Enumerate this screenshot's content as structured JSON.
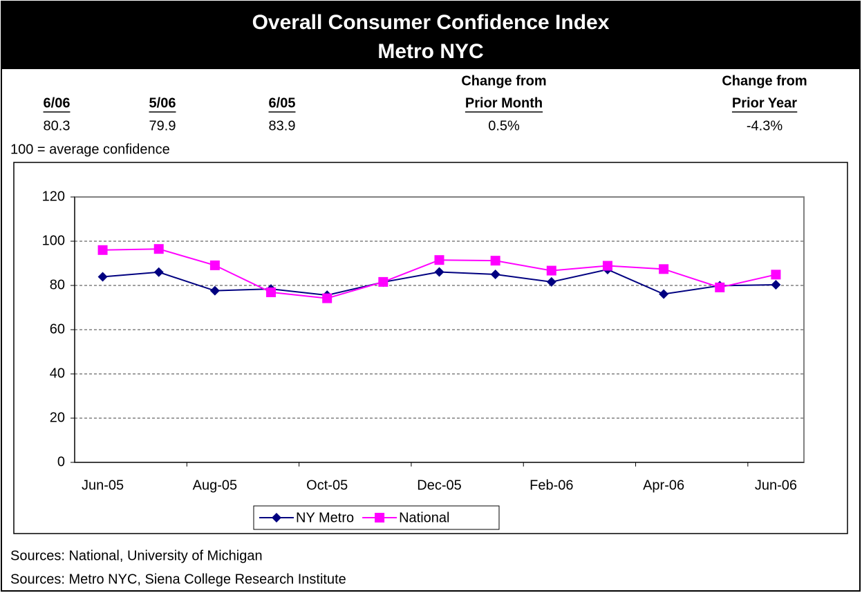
{
  "header": {
    "title": "Overall Consumer Confidence Index",
    "subtitle": "Metro NYC"
  },
  "summary": {
    "columns": [
      {
        "header": [
          "6/06"
        ],
        "value": "80.3"
      },
      {
        "header": [
          "5/06"
        ],
        "value": "79.9"
      },
      {
        "header": [
          "6/05"
        ],
        "value": "83.9"
      },
      {
        "header": [
          "Change from",
          "Prior Month"
        ],
        "value": "0.5%"
      },
      {
        "header": [
          "Change from",
          "Prior Year"
        ],
        "value": "-4.3%"
      }
    ]
  },
  "note": "100 = average confidence",
  "chart_data": {
    "type": "line",
    "categories": [
      "Jun-05",
      null,
      "Aug-05",
      null,
      "Oct-05",
      null,
      "Dec-05",
      null,
      "Feb-06",
      null,
      "Apr-06",
      null,
      "Jun-06"
    ],
    "series": [
      {
        "name": "NY Metro",
        "color": "#000080",
        "marker": "diamond",
        "values": [
          83.9,
          86.0,
          77.6,
          78.4,
          75.6,
          81.5,
          86.1,
          85.0,
          81.6,
          87.2,
          76.1,
          79.9,
          80.3
        ]
      },
      {
        "name": "National",
        "color": "#ff00ff",
        "marker": "square",
        "values": [
          96.0,
          96.5,
          89.1,
          76.9,
          74.2,
          81.6,
          91.5,
          91.2,
          86.7,
          88.9,
          87.4,
          79.1,
          84.9
        ]
      }
    ],
    "ylim": [
      0,
      120
    ],
    "yticks": [
      0,
      20,
      40,
      60,
      80,
      100,
      120
    ],
    "grid": true,
    "legend": "bottom"
  },
  "sources": [
    "Sources: National, University of Michigan",
    "Sources: Metro NYC, Siena College Research Institute"
  ]
}
